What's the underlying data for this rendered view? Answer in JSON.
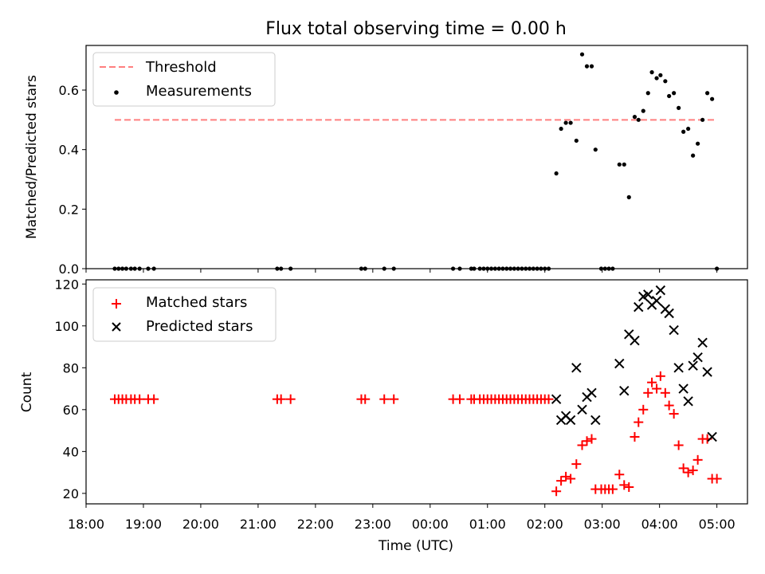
{
  "chart_data": [
    {
      "panel": "top",
      "type": "scatter",
      "title": "Flux total observing time = 0.00 h",
      "xlabel": "",
      "ylabel": "Matched/Predicted stars",
      "ylim": [
        0,
        0.75
      ],
      "yticks": [
        0.0,
        0.2,
        0.4,
        0.6
      ],
      "ytick_labels": [
        "0.0",
        "0.2",
        "0.4",
        "0.6"
      ],
      "legend_position": "top-left",
      "threshold": {
        "name": "Threshold",
        "value": 0.5,
        "x_range": [
          "18:30",
          "05:00"
        ],
        "color": "#ff7f7f"
      },
      "series": [
        {
          "name": "Measurements",
          "color": "#000000",
          "points": [
            [
              "18:30",
              0
            ],
            [
              "18:34",
              0
            ],
            [
              "18:38",
              0
            ],
            [
              "18:42",
              0
            ],
            [
              "18:47",
              0
            ],
            [
              "18:51",
              0
            ],
            [
              "18:56",
              0
            ],
            [
              "19:05",
              0
            ],
            [
              "19:11",
              0
            ],
            [
              "21:20",
              0
            ],
            [
              "21:24",
              0
            ],
            [
              "21:34",
              0
            ],
            [
              "22:48",
              0
            ],
            [
              "22:52",
              0
            ],
            [
              "23:12",
              0
            ],
            [
              "23:22",
              0
            ],
            [
              "00:24",
              0
            ],
            [
              "00:31",
              0
            ],
            [
              "00:43",
              0
            ],
            [
              "00:46",
              0
            ],
            [
              "00:52",
              0
            ],
            [
              "00:56",
              0
            ],
            [
              "01:00",
              0
            ],
            [
              "01:04",
              0
            ],
            [
              "01:08",
              0
            ],
            [
              "01:12",
              0
            ],
            [
              "01:16",
              0
            ],
            [
              "01:20",
              0
            ],
            [
              "01:24",
              0
            ],
            [
              "01:28",
              0
            ],
            [
              "01:32",
              0
            ],
            [
              "01:36",
              0
            ],
            [
              "01:40",
              0
            ],
            [
              "01:44",
              0
            ],
            [
              "01:48",
              0
            ],
            [
              "01:52",
              0
            ],
            [
              "01:56",
              0
            ],
            [
              "02:00",
              0
            ],
            [
              "02:04",
              0
            ],
            [
              "02:12",
              0.32
            ],
            [
              "02:17",
              0.47
            ],
            [
              "02:22",
              0.49
            ],
            [
              "02:27",
              0.49
            ],
            [
              "02:33",
              0.43
            ],
            [
              "02:39",
              0.72
            ],
            [
              "02:44",
              0.68
            ],
            [
              "02:49",
              0.68
            ],
            [
              "02:53",
              0.4
            ],
            [
              "02:59",
              0
            ],
            [
              "03:03",
              0
            ],
            [
              "03:07",
              0
            ],
            [
              "03:11",
              0
            ],
            [
              "03:18",
              0.35
            ],
            [
              "03:23",
              0.35
            ],
            [
              "03:28",
              0.24
            ],
            [
              "03:34",
              0.51
            ],
            [
              "03:38",
              0.5
            ],
            [
              "03:43",
              0.53
            ],
            [
              "03:48",
              0.59
            ],
            [
              "03:52",
              0.66
            ],
            [
              "03:57",
              0.64
            ],
            [
              "04:01",
              0.65
            ],
            [
              "04:06",
              0.63
            ],
            [
              "04:10",
              0.58
            ],
            [
              "04:15",
              0.59
            ],
            [
              "04:20",
              0.54
            ],
            [
              "04:25",
              0.46
            ],
            [
              "04:30",
              0.47
            ],
            [
              "04:35",
              0.38
            ],
            [
              "04:40",
              0.42
            ],
            [
              "04:45",
              0.5
            ],
            [
              "04:50",
              0.59
            ],
            [
              "04:55",
              0.57
            ],
            [
              "05:00",
              0
            ]
          ]
        }
      ]
    },
    {
      "panel": "bottom",
      "type": "scatter",
      "title": "",
      "xlabel": "Time (UTC)",
      "ylabel": "Count",
      "ylim": [
        15,
        122
      ],
      "yticks": [
        20,
        40,
        60,
        80,
        100,
        120
      ],
      "ytick_labels": [
        "20",
        "40",
        "60",
        "80",
        "100",
        "120"
      ],
      "xlim": [
        "18:00",
        "05:32"
      ],
      "xticks": [
        "18:00",
        "19:00",
        "20:00",
        "21:00",
        "22:00",
        "23:00",
        "00:00",
        "01:00",
        "02:00",
        "03:00",
        "04:00",
        "05:00"
      ],
      "xtick_labels": [
        "18:00",
        "19:00",
        "20:00",
        "21:00",
        "22:00",
        "23:00",
        "00:00",
        "01:00",
        "02:00",
        "03:00",
        "04:00",
        "05:00"
      ],
      "legend_position": "top-left",
      "series": [
        {
          "name": "Matched stars",
          "marker": "plus",
          "color": "#ff0000",
          "points": [
            [
              "18:30",
              65
            ],
            [
              "18:34",
              65
            ],
            [
              "18:38",
              65
            ],
            [
              "18:42",
              65
            ],
            [
              "18:47",
              65
            ],
            [
              "18:51",
              65
            ],
            [
              "18:56",
              65
            ],
            [
              "19:05",
              65
            ],
            [
              "19:11",
              65
            ],
            [
              "21:20",
              65
            ],
            [
              "21:24",
              65
            ],
            [
              "21:34",
              65
            ],
            [
              "22:48",
              65
            ],
            [
              "22:52",
              65
            ],
            [
              "23:12",
              65
            ],
            [
              "23:22",
              65
            ],
            [
              "00:24",
              65
            ],
            [
              "00:31",
              65
            ],
            [
              "00:43",
              65
            ],
            [
              "00:46",
              65
            ],
            [
              "00:52",
              65
            ],
            [
              "00:56",
              65
            ],
            [
              "01:00",
              65
            ],
            [
              "01:04",
              65
            ],
            [
              "01:08",
              65
            ],
            [
              "01:12",
              65
            ],
            [
              "01:16",
              65
            ],
            [
              "01:20",
              65
            ],
            [
              "01:24",
              65
            ],
            [
              "01:28",
              65
            ],
            [
              "01:32",
              65
            ],
            [
              "01:36",
              65
            ],
            [
              "01:40",
              65
            ],
            [
              "01:44",
              65
            ],
            [
              "01:48",
              65
            ],
            [
              "01:52",
              65
            ],
            [
              "01:56",
              65
            ],
            [
              "02:00",
              65
            ],
            [
              "02:04",
              65
            ],
            [
              "02:12",
              21
            ],
            [
              "02:17",
              26
            ],
            [
              "02:22",
              28
            ],
            [
              "02:27",
              27
            ],
            [
              "02:33",
              34
            ],
            [
              "02:39",
              43
            ],
            [
              "02:44",
              45
            ],
            [
              "02:49",
              46
            ],
            [
              "02:53",
              22
            ],
            [
              "02:59",
              22
            ],
            [
              "03:03",
              22
            ],
            [
              "03:07",
              22
            ],
            [
              "03:11",
              22
            ],
            [
              "03:18",
              29
            ],
            [
              "03:23",
              24
            ],
            [
              "03:28",
              23
            ],
            [
              "03:34",
              47
            ],
            [
              "03:38",
              54
            ],
            [
              "03:43",
              60
            ],
            [
              "03:48",
              68
            ],
            [
              "03:52",
              73
            ],
            [
              "03:57",
              70
            ],
            [
              "04:01",
              76
            ],
            [
              "04:06",
              68
            ],
            [
              "04:10",
              62
            ],
            [
              "04:15",
              58
            ],
            [
              "04:20",
              43
            ],
            [
              "04:25",
              32
            ],
            [
              "04:30",
              30
            ],
            [
              "04:35",
              31
            ],
            [
              "04:40",
              36
            ],
            [
              "04:45",
              46
            ],
            [
              "04:50",
              46
            ],
            [
              "04:55",
              27
            ],
            [
              "05:00",
              27
            ]
          ]
        },
        {
          "name": "Predicted stars",
          "marker": "cross",
          "color": "#000000",
          "points": [
            [
              "02:12",
              65
            ],
            [
              "02:17",
              55
            ],
            [
              "02:22",
              57
            ],
            [
              "02:27",
              55
            ],
            [
              "02:33",
              80
            ],
            [
              "02:39",
              60
            ],
            [
              "02:44",
              66
            ],
            [
              "02:49",
              68
            ],
            [
              "02:53",
              55
            ],
            [
              "03:18",
              82
            ],
            [
              "03:23",
              69
            ],
            [
              "03:28",
              96
            ],
            [
              "03:34",
              93
            ],
            [
              "03:38",
              109
            ],
            [
              "03:43",
              114
            ],
            [
              "03:48",
              115
            ],
            [
              "03:52",
              110
            ],
            [
              "03:57",
              112
            ],
            [
              "04:01",
              117
            ],
            [
              "04:06",
              108
            ],
            [
              "04:10",
              106
            ],
            [
              "04:15",
              98
            ],
            [
              "04:20",
              80
            ],
            [
              "04:25",
              70
            ],
            [
              "04:30",
              64
            ],
            [
              "04:35",
              81
            ],
            [
              "04:40",
              85
            ],
            [
              "04:45",
              92
            ],
            [
              "04:50",
              78
            ],
            [
              "04:55",
              47
            ]
          ]
        }
      ]
    }
  ]
}
